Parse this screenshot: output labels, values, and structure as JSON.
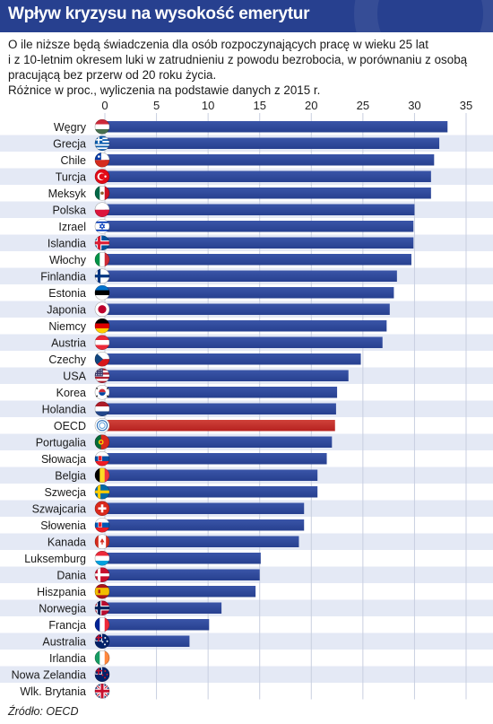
{
  "title": "Wpływ kryzysu na wysokość emerytur",
  "subtitle_lines": [
    "O ile niższe będą świadczenia dla osób rozpoczynających pracę w wieku 25 lat",
    "i z 10-letnim okresem luki w zatrudnieniu z powodu bezrobocia, w porównaniu z osobą",
    "pracującą bez przerw od 20 roku życia.",
    "Różnice w proc., wyliczenia na podstawie danych z 2015 r."
  ],
  "source": "Źródło: OECD",
  "colors": {
    "header_bg": "#27408f",
    "bar": "#27408f",
    "highlight_bar": "#b5211f",
    "stripe": "#e4e9f5"
  },
  "chart_data": {
    "type": "bar",
    "orientation": "horizontal",
    "x_ticks": [
      0,
      5,
      10,
      15,
      20,
      25,
      30,
      35
    ],
    "xlim": [
      0,
      35
    ],
    "grid": true,
    "highlight": "OECD",
    "categories": [
      "Węgry",
      "Grecja",
      "Chile",
      "Turcja",
      "Meksyk",
      "Polska",
      "Izrael",
      "Islandia",
      "Włochy",
      "Finlandia",
      "Estonia",
      "Japonia",
      "Niemcy",
      "Austria",
      "Czechy",
      "USA",
      "Korea",
      "Holandia",
      "OECD",
      "Portugalia",
      "Słowacja",
      "Belgia",
      "Szwecja",
      "Szwajcaria",
      "Słowenia",
      "Kanada",
      "Luksemburg",
      "Dania",
      "Hiszpania",
      "Norwegia",
      "Francja",
      "Australia",
      "Irlandia",
      "Nowa Zelandia",
      "Wlk. Brytania"
    ],
    "values": [
      33.2,
      32.4,
      31.9,
      31.6,
      31.6,
      30.0,
      29.9,
      29.9,
      29.7,
      28.3,
      28.0,
      27.6,
      27.3,
      26.9,
      24.8,
      23.6,
      22.5,
      22.4,
      22.3,
      22.0,
      21.5,
      20.6,
      20.6,
      19.3,
      19.3,
      18.8,
      15.1,
      15.0,
      14.6,
      11.3,
      10.1,
      8.2,
      0,
      0,
      0
    ]
  },
  "flags": [
    {
      "type": "h3",
      "colors": [
        "#ce2939",
        "#ffffff",
        "#477050"
      ]
    },
    {
      "type": "greece"
    },
    {
      "type": "chile"
    },
    {
      "type": "turkey"
    },
    {
      "type": "v3",
      "colors": [
        "#006847",
        "#ffffff",
        "#ce1126"
      ],
      "emblem": "#8a5a2b"
    },
    {
      "type": "h2",
      "colors": [
        "#ffffff",
        "#dc143c"
      ]
    },
    {
      "type": "israel"
    },
    {
      "type": "nordic",
      "field": "#02529c",
      "cross": "#dc1e35",
      "border": "#ffffff"
    },
    {
      "type": "v3",
      "colors": [
        "#009246",
        "#ffffff",
        "#ce2b37"
      ]
    },
    {
      "type": "nordic",
      "field": "#ffffff",
      "cross": "#003580"
    },
    {
      "type": "h3",
      "colors": [
        "#0072ce",
        "#000000",
        "#ffffff"
      ]
    },
    {
      "type": "japan"
    },
    {
      "type": "h3",
      "colors": [
        "#000000",
        "#dd0000",
        "#ffce00"
      ]
    },
    {
      "type": "h3",
      "colors": [
        "#ed2939",
        "#ffffff",
        "#ed2939"
      ]
    },
    {
      "type": "czech"
    },
    {
      "type": "usa"
    },
    {
      "type": "korea"
    },
    {
      "type": "h3",
      "colors": [
        "#ae1c28",
        "#ffffff",
        "#21468b"
      ]
    },
    {
      "type": "oecd"
    },
    {
      "type": "portugal"
    },
    {
      "type": "h3",
      "colors": [
        "#ffffff",
        "#0b4ea2",
        "#ee1c25"
      ],
      "shield": true
    },
    {
      "type": "v3",
      "colors": [
        "#000000",
        "#fdda24",
        "#ef3340"
      ]
    },
    {
      "type": "nordic",
      "field": "#006aa7",
      "cross": "#fecc00"
    },
    {
      "type": "swiss"
    },
    {
      "type": "h3",
      "colors": [
        "#ffffff",
        "#0056b3",
        "#ed1c24"
      ],
      "shield": true
    },
    {
      "type": "canada"
    },
    {
      "type": "h3",
      "colors": [
        "#ed2939",
        "#ffffff",
        "#00a1de"
      ]
    },
    {
      "type": "nordic",
      "field": "#c8102e",
      "cross": "#ffffff"
    },
    {
      "type": "spain"
    },
    {
      "type": "nordic",
      "field": "#ba0c2f",
      "cross": "#00205b",
      "border": "#ffffff"
    },
    {
      "type": "v3",
      "colors": [
        "#002395",
        "#ffffff",
        "#ed2939"
      ]
    },
    {
      "type": "ensign",
      "field": "#012169",
      "star": "#ffffff"
    },
    {
      "type": "v3",
      "colors": [
        "#169b62",
        "#ffffff",
        "#ff883e"
      ]
    },
    {
      "type": "ensign",
      "field": "#012169",
      "star": "#cc142b"
    },
    {
      "type": "uk"
    }
  ]
}
